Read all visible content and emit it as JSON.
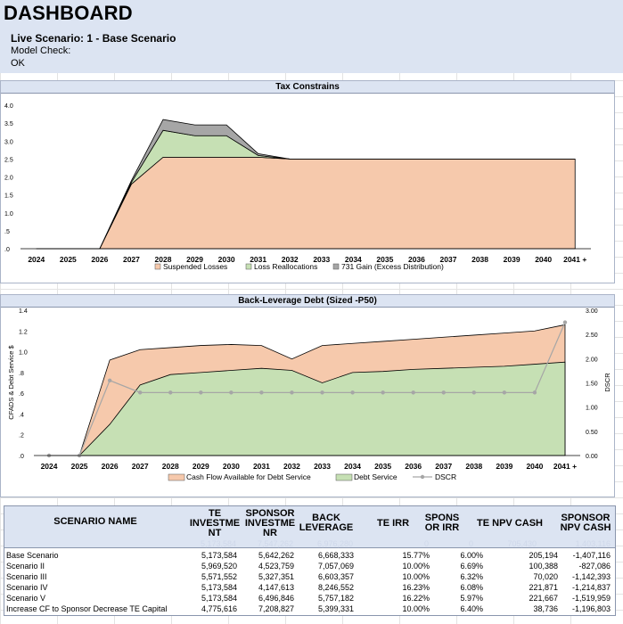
{
  "dashboard": {
    "title": "DASHBOARD",
    "live_scenario": "Live Scenario: 1 - Base Scenario",
    "model_check_label": "Model Check:",
    "model_check_status": "OK"
  },
  "colors": {
    "header_bg": "#dce4f2",
    "suspended_losses": "#f6c9ac",
    "loss_reallocations": "#c6e0b4",
    "gain_731": "#a6a6a6",
    "cfads": "#f6c9ac",
    "debt_service": "#c6e0b4",
    "dscr": "#a6a6a6"
  },
  "chart_data": [
    {
      "type": "area",
      "title": "Tax Constrains",
      "categories": [
        "2024",
        "2025",
        "2026",
        "2027",
        "2028",
        "2029",
        "2030",
        "2031",
        "2032",
        "2033",
        "2034",
        "2035",
        "2036",
        "2037",
        "2038",
        "2039",
        "2040",
        "2041 +"
      ],
      "y_ticks": [
        "4.0",
        "3.5",
        "3.0",
        "2.5",
        "2.0",
        "1.5",
        "1.0",
        ".5",
        ".0"
      ],
      "ylim": [
        0,
        4.0
      ],
      "stacked": true,
      "series": [
        {
          "name": "Suspended Losses",
          "values": [
            0,
            0,
            0,
            1.8,
            2.55,
            2.55,
            2.55,
            2.55,
            2.5,
            2.5,
            2.5,
            2.5,
            2.5,
            2.5,
            2.5,
            2.5,
            2.5,
            2.5
          ]
        },
        {
          "name": "Loss Reallocations",
          "values": [
            0,
            0,
            0,
            0.05,
            0.75,
            0.6,
            0.6,
            0.05,
            0,
            0,
            0,
            0,
            0,
            0,
            0,
            0,
            0,
            0
          ]
        },
        {
          "name": "731 Gain (Excess Distribution)",
          "values": [
            0,
            0,
            0,
            0.05,
            0.3,
            0.3,
            0.3,
            0.05,
            0,
            0,
            0,
            0,
            0,
            0,
            0,
            0,
            0,
            0
          ]
        }
      ],
      "legend_position": "bottom",
      "grid": false
    },
    {
      "type": "area",
      "title": "Back-Leverage Debt (Sized -P50)",
      "categories": [
        "2024",
        "2025",
        "2026",
        "2027",
        "2028",
        "2029",
        "2030",
        "2031",
        "2032",
        "2033",
        "2034",
        "2035",
        "2036",
        "2037",
        "2038",
        "2039",
        "2040",
        "2041 +"
      ],
      "ylabel": "CFADS & Debt Service $",
      "y2label": "DSCR",
      "y_ticks": [
        "1.4",
        "1.2",
        "1.0",
        ".8",
        ".6",
        ".4",
        ".2",
        ".0"
      ],
      "y2_ticks": [
        "3.00",
        "2.50",
        "2.00",
        "1.50",
        "1.00",
        "0.50",
        "0.00"
      ],
      "ylim": [
        0,
        1.4
      ],
      "y2lim": [
        0,
        3.0
      ],
      "series": [
        {
          "name": "Cash Flow Available for Debt Service",
          "kind": "area",
          "values": [
            0,
            0,
            0.92,
            1.02,
            1.04,
            1.06,
            1.07,
            1.06,
            0.93,
            1.06,
            1.08,
            1.1,
            1.12,
            1.14,
            1.16,
            1.18,
            1.2,
            1.26
          ]
        },
        {
          "name": "Debt Service",
          "kind": "area",
          "values": [
            0,
            0,
            0.3,
            0.68,
            0.78,
            0.8,
            0.82,
            0.84,
            0.82,
            0.7,
            0.8,
            0.81,
            0.83,
            0.84,
            0.85,
            0.86,
            0.88,
            0.9
          ]
        },
        {
          "name": "DSCR",
          "kind": "line",
          "axis": "secondary",
          "values": [
            0,
            0,
            1.55,
            1.3,
            1.3,
            1.3,
            1.3,
            1.3,
            1.3,
            1.3,
            1.3,
            1.3,
            1.3,
            1.3,
            1.3,
            1.3,
            1.3,
            2.75
          ]
        }
      ],
      "legend_position": "bottom",
      "grid": false
    }
  ],
  "table": {
    "headers": [
      "SCENARIO NAME",
      "TE INVESTME NT",
      "SPONSOR INVESTME NR",
      "BACK LEVERAGE",
      "TE IRR",
      "SPONS OR IRR",
      "TE NPV CASH",
      "SPONSOR NPV CASH"
    ],
    "header_lines": [
      [
        "SCENARIO NAME"
      ],
      [
        "TE",
        "INVESTME",
        "NT"
      ],
      [
        "SPONSOR",
        "INVESTME",
        "NR"
      ],
      [
        "BACK",
        "LEVERAGE"
      ],
      [
        "TE IRR"
      ],
      [
        "SPONS",
        "OR IRR"
      ],
      [
        "TE NPV CASH"
      ],
      [
        "SPONSOR",
        "NPV CASH"
      ]
    ],
    "ghost": [
      "5,173,584",
      "7,547,262",
      "6,976,280",
      "0",
      "0",
      "705,430",
      "1,403,116"
    ],
    "rows": [
      [
        "Base Scenario",
        "5,173,584",
        "5,642,262",
        "6,668,333",
        "15.77%",
        "6.00%",
        "205,194",
        "-1,407,116"
      ],
      [
        "Scenario II",
        "5,969,520",
        "4,523,759",
        "7,057,069",
        "10.00%",
        "6.69%",
        "100,388",
        "-827,086"
      ],
      [
        "Scenario III",
        "5,571,552",
        "5,327,351",
        "6,603,357",
        "10.00%",
        "6.32%",
        "70,020",
        "-1,142,393"
      ],
      [
        "Scenario IV",
        "5,173,584",
        "4,147,613",
        "8,246,552",
        "16.23%",
        "6.08%",
        "221,871",
        "-1,214,837"
      ],
      [
        "Scenario V",
        "5,173,584",
        "6,496,846",
        "5,757,182",
        "16.22%",
        "5.97%",
        "221,667",
        "-1,519,959"
      ],
      [
        "Increase CF to Sponsor Decrease TE Capital",
        "4,775,616",
        "7,208,827",
        "5,399,331",
        "10.00%",
        "6.40%",
        "38,736",
        "-1,196,803"
      ]
    ]
  }
}
